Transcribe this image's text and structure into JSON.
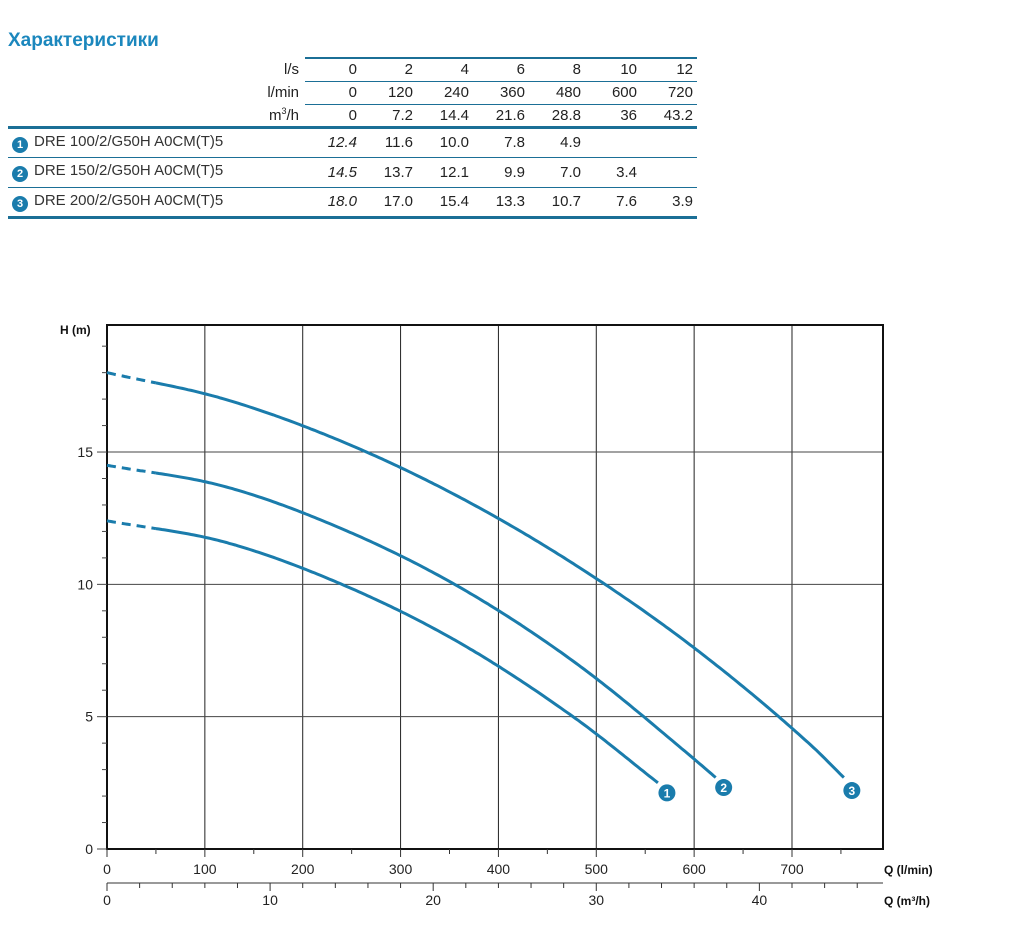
{
  "title": "Характеристики",
  "table": {
    "header_rows": [
      {
        "label": "l/s",
        "values": [
          "0",
          "2",
          "4",
          "6",
          "8",
          "10",
          "12"
        ]
      },
      {
        "label": "l/min",
        "values": [
          "0",
          "120",
          "240",
          "360",
          "480",
          "600",
          "720"
        ]
      },
      {
        "label": "m3/h",
        "label_base": "m",
        "label_sup": "3",
        "label_tail": "/h",
        "values": [
          "0",
          "7.2",
          "14.4",
          "21.6",
          "28.8",
          "36",
          "43.2"
        ]
      }
    ],
    "models": [
      {
        "badge": "1",
        "name": "DRE 100/2/G50H A0CM(T)5",
        "values": [
          "12.4",
          "11.6",
          "10.0",
          "7.8",
          "4.9",
          "",
          ""
        ]
      },
      {
        "badge": "2",
        "name": "DRE 150/2/G50H A0CM(T)5",
        "values": [
          "14.5",
          "13.7",
          "12.1",
          "9.9",
          "7.0",
          "3.4",
          ""
        ]
      },
      {
        "badge": "3",
        "name": "DRE 200/2/G50H A0CM(T)5",
        "values": [
          "18.0",
          "17.0",
          "15.4",
          "13.3",
          "10.7",
          "7.6",
          "3.9"
        ]
      }
    ]
  },
  "chart_data": {
    "type": "line",
    "ylabel": "H (m)",
    "xlabel": "Q (l/min)",
    "xlabel2": "Q (m³/h)",
    "xlim": [
      0,
      793
    ],
    "ylim": [
      0,
      19.8
    ],
    "x_ticks": [
      "0",
      "100",
      "200",
      "300",
      "400",
      "500",
      "600",
      "700"
    ],
    "x2_ticks": [
      "0",
      "10",
      "20",
      "30",
      "40"
    ],
    "y_ticks": [
      "0",
      "5",
      "10",
      "15"
    ],
    "grid": true,
    "line_color": "#1a7cac",
    "dashed_below_x": 50,
    "series": [
      {
        "label": "1",
        "x": [
          0,
          120,
          240,
          360,
          480,
          563
        ],
        "y": [
          12.4,
          11.6,
          10.0,
          7.8,
          4.9,
          2.5
        ]
      },
      {
        "label": "2",
        "x": [
          0,
          120,
          240,
          360,
          480,
          600,
          622
        ],
        "y": [
          14.5,
          13.7,
          12.1,
          9.9,
          7.0,
          3.4,
          2.7
        ]
      },
      {
        "label": "3",
        "x": [
          0,
          120,
          240,
          360,
          480,
          600,
          720,
          753
        ],
        "y": [
          18.0,
          17.0,
          15.4,
          13.3,
          10.7,
          7.6,
          3.9,
          2.7
        ]
      }
    ]
  }
}
